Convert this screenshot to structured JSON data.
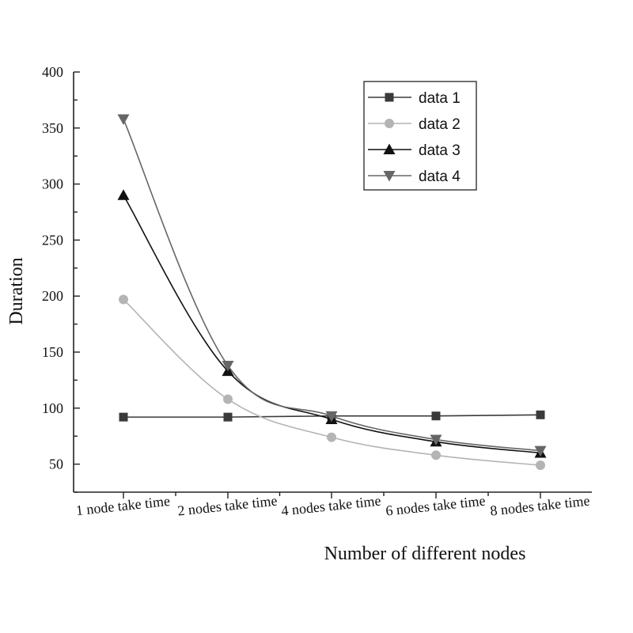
{
  "chart_data": {
    "type": "line",
    "title": "",
    "xlabel": "Number of different nodes",
    "ylabel": "Duration",
    "categories": [
      "1 node take time",
      "2 nodes take time",
      "4 nodes take time",
      "6 nodes take time",
      "8 nodes take time"
    ],
    "ylim": [
      25,
      400
    ],
    "yticks": [
      50,
      100,
      150,
      200,
      250,
      300,
      350,
      400
    ],
    "grid": false,
    "legend_position": "top-right",
    "series": [
      {
        "name": "data 1",
        "values": [
          92,
          92,
          93,
          93,
          94
        ],
        "color": "#3a3a3a",
        "marker": "square"
      },
      {
        "name": "data 2",
        "values": [
          197,
          108,
          74,
          58,
          49
        ],
        "color": "#b4b4b4",
        "marker": "circle"
      },
      {
        "name": "data 3",
        "values": [
          290,
          133,
          90,
          70,
          60
        ],
        "color": "#111111",
        "marker": "triangle-up"
      },
      {
        "name": "data 4",
        "values": [
          358,
          138,
          93,
          72,
          62
        ],
        "color": "#666666",
        "marker": "triangle-down"
      }
    ]
  }
}
